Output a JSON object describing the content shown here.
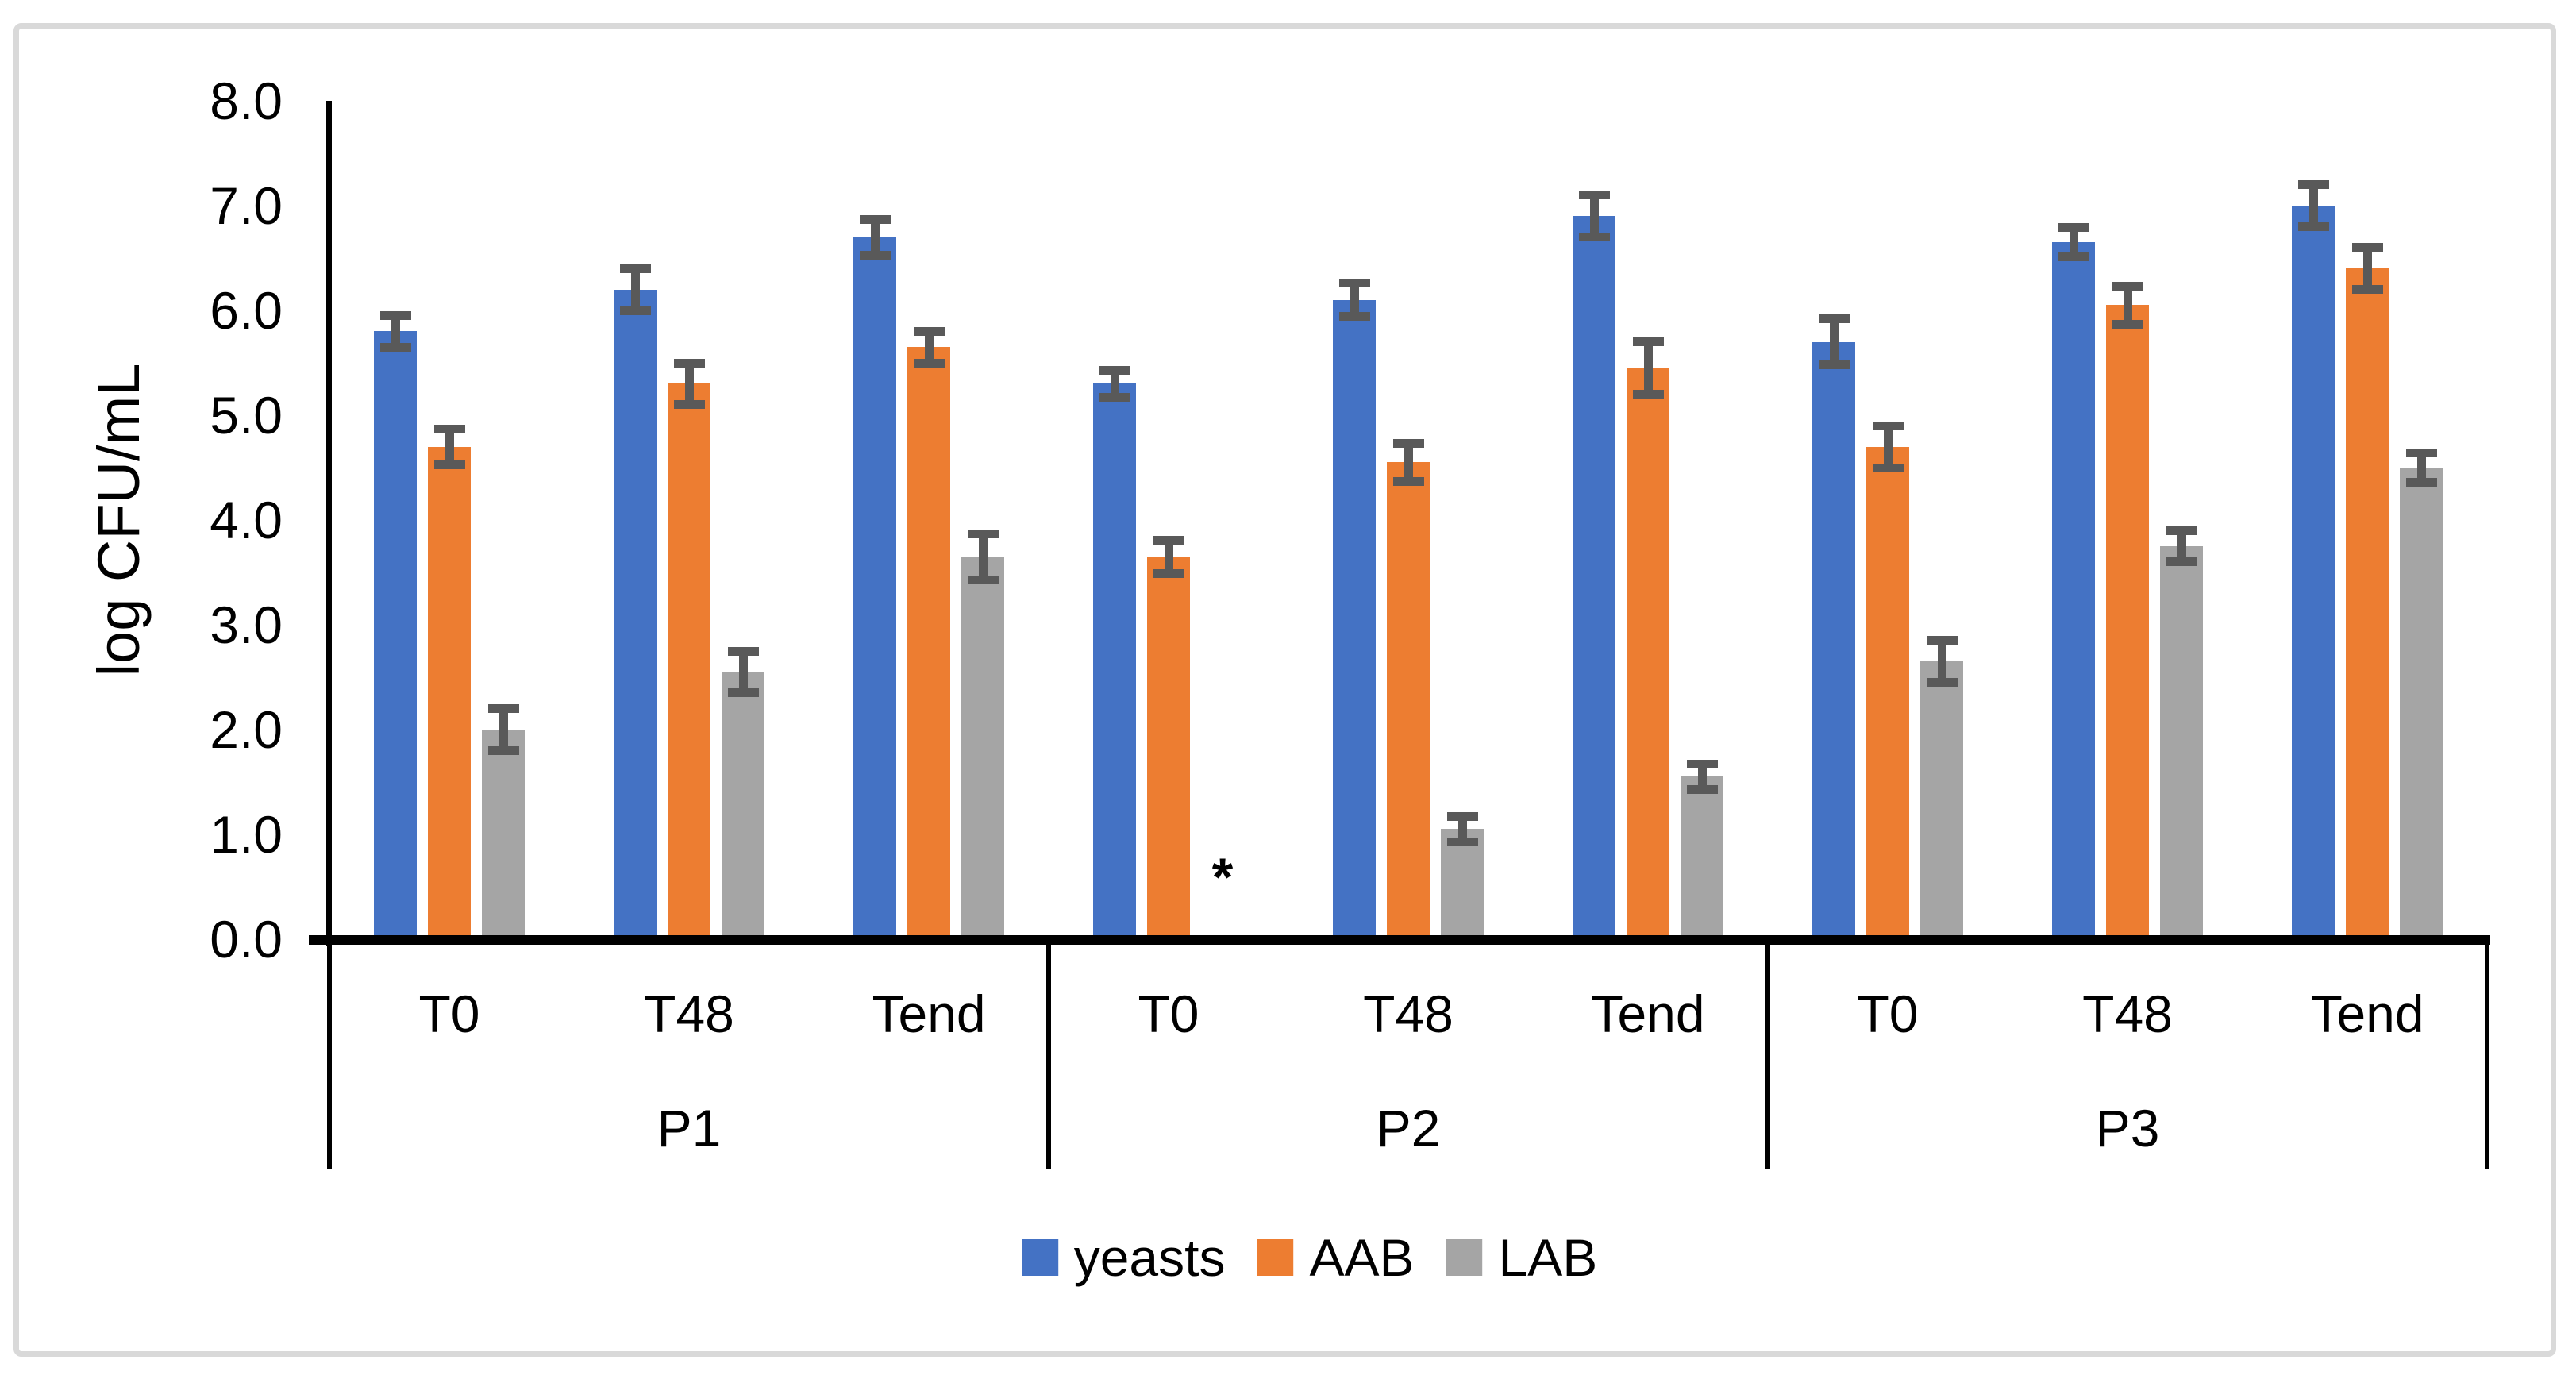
{
  "chart_data": {
    "type": "bar",
    "title": "",
    "ylabel": "log CFU/mL",
    "xlabel": "",
    "ylim": [
      0.0,
      8.0
    ],
    "y_ticks": [
      "0.0",
      "1.0",
      "2.0",
      "3.0",
      "4.0",
      "5.0",
      "6.0",
      "7.0",
      "8.0"
    ],
    "grid": false,
    "legend_position": "bottom",
    "groups": [
      "P1",
      "P2",
      "P3"
    ],
    "timepoints": [
      "T0",
      "T48",
      "Tend"
    ],
    "series": [
      {
        "name": "yeasts",
        "color": "#4472C4",
        "values": [
          [
            5.8,
            6.2,
            6.7
          ],
          [
            5.3,
            6.1,
            6.9
          ],
          [
            5.7,
            6.65,
            7.0
          ]
        ],
        "errors": [
          [
            0.15,
            0.2,
            0.17
          ],
          [
            0.13,
            0.16,
            0.2
          ],
          [
            0.22,
            0.14,
            0.2
          ]
        ]
      },
      {
        "name": "AAB",
        "color": "#ED7D31",
        "values": [
          [
            4.7,
            5.3,
            5.65
          ],
          [
            3.65,
            4.55,
            5.45
          ],
          [
            4.7,
            6.05,
            6.4
          ]
        ],
        "errors": [
          [
            0.17,
            0.2,
            0.15
          ],
          [
            0.16,
            0.18,
            0.25
          ],
          [
            0.2,
            0.18,
            0.2
          ]
        ]
      },
      {
        "name": "LAB",
        "color": "#A5A5A5",
        "values": [
          [
            2.0,
            2.55,
            3.65
          ],
          [
            null,
            1.05,
            1.55
          ],
          [
            2.65,
            3.75,
            4.5
          ]
        ],
        "errors": [
          [
            0.2,
            0.2,
            0.22
          ],
          [
            null,
            0.12,
            0.12
          ],
          [
            0.2,
            0.15,
            0.14
          ]
        ]
      }
    ],
    "annotations": [
      {
        "text": "*",
        "group": "P2",
        "timepoint": "T0",
        "series": "LAB"
      }
    ],
    "error_bar_color": "#595959",
    "axis_color": "#000000"
  }
}
